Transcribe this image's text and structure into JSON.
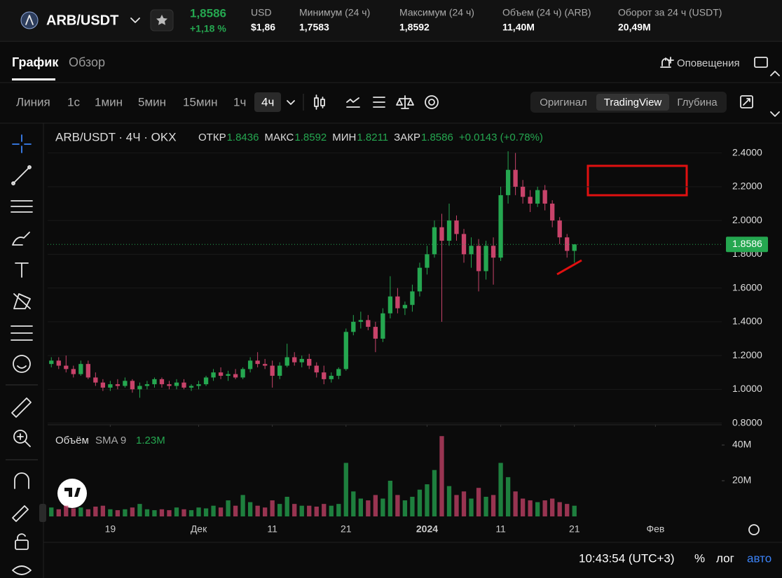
{
  "header": {
    "pair": "ARB/USDT",
    "price": "1,8586",
    "change": "+1,18 %",
    "stats": [
      {
        "label": "USD",
        "value": "$1,86"
      },
      {
        "label": "Минимум (24 ч)",
        "value": "1,7583"
      },
      {
        "label": "Максимум (24 ч)",
        "value": "1,8592"
      },
      {
        "label": "Объем (24 ч) (ARB)",
        "value": "11,40M"
      },
      {
        "label": "Оборот за 24 ч (USDT)",
        "value": "20,49M"
      }
    ]
  },
  "tabs": [
    "График",
    "Обзор"
  ],
  "alerts": "Оповещения",
  "toolbar": {
    "intervals": [
      "Линия",
      "1с",
      "1мин",
      "5мин",
      "15мин",
      "1ч",
      "4ч"
    ],
    "views": [
      "Оригинал",
      "TradingView",
      "Глубина"
    ]
  },
  "chart_data": {
    "type": "candlestick",
    "title": "ARB/USDT · 4Ч · OKX",
    "legend": [
      {
        "label": "ОТКР",
        "value": "1.8436"
      },
      {
        "label": "МАКС",
        "value": "1.8592"
      },
      {
        "label": "МИН",
        "value": "1.8211"
      },
      {
        "label": "ЗАКР",
        "value": "1.8586"
      }
    ],
    "legend_change": "+0.0143 (+0.78%)",
    "up_color": "#25a750",
    "down_color": "#c8436a",
    "candles": [
      [
        1.15,
        1.19,
        1.13,
        1.17
      ],
      [
        1.17,
        1.19,
        1.12,
        1.14
      ],
      [
        1.14,
        1.2,
        1.1,
        1.12
      ],
      [
        1.12,
        1.14,
        1.07,
        1.09
      ],
      [
        1.09,
        1.17,
        1.08,
        1.15
      ],
      [
        1.15,
        1.17,
        1.06,
        1.07
      ],
      [
        1.07,
        1.1,
        1.02,
        1.04
      ],
      [
        1.04,
        1.06,
        0.99,
        1.01
      ],
      [
        1.01,
        1.05,
        0.99,
        1.03
      ],
      [
        1.03,
        1.06,
        1,
        1.02
      ],
      [
        1.02,
        1.07,
        1.01,
        1.05
      ],
      [
        1.05,
        1.06,
        0.98,
        1
      ],
      [
        1,
        1.04,
        0.95,
        1.02
      ],
      [
        1.02,
        1.05,
        1,
        1.03
      ],
      [
        1.03,
        1.07,
        1.01,
        1.06
      ],
      [
        1.06,
        1.07,
        1.01,
        1.03
      ],
      [
        1.03,
        1.05,
        1,
        1.02
      ],
      [
        1.02,
        1.06,
        1,
        1.04
      ],
      [
        1.04,
        1.06,
        1,
        1.01
      ],
      [
        1.01,
        1.03,
        0.99,
        1.02
      ],
      [
        1.02,
        1.05,
        1,
        1.03
      ],
      [
        1.03,
        1.08,
        1.02,
        1.07
      ],
      [
        1.07,
        1.12,
        1.05,
        1.1
      ],
      [
        1.1,
        1.13,
        1.06,
        1.08
      ],
      [
        1.08,
        1.11,
        1.05,
        1.09
      ],
      [
        1.09,
        1.12,
        1.06,
        1.07
      ],
      [
        1.07,
        1.13,
        1.06,
        1.12
      ],
      [
        1.12,
        1.19,
        1.1,
        1.17
      ],
      [
        1.17,
        1.22,
        1.13,
        1.15
      ],
      [
        1.15,
        1.18,
        1.12,
        1.14
      ],
      [
        1.14,
        1.17,
        1.01,
        1.08
      ],
      [
        1.08,
        1.16,
        1.06,
        1.14
      ],
      [
        1.14,
        1.27,
        1.13,
        1.19
      ],
      [
        1.19,
        1.22,
        1.14,
        1.16
      ],
      [
        1.16,
        1.2,
        1.13,
        1.18
      ],
      [
        1.18,
        1.21,
        1.12,
        1.14
      ],
      [
        1.14,
        1.16,
        1.07,
        1.1
      ],
      [
        1.1,
        1.14,
        1.03,
        1.06
      ],
      [
        1.06,
        1.1,
        1.04,
        1.08
      ],
      [
        1.08,
        1.13,
        1.06,
        1.12
      ],
      [
        1.12,
        1.36,
        1.11,
        1.34
      ],
      [
        1.34,
        1.44,
        1.32,
        1.4
      ],
      [
        1.4,
        1.46,
        1.36,
        1.41
      ],
      [
        1.41,
        1.44,
        1.35,
        1.37
      ],
      [
        1.37,
        1.4,
        1.22,
        1.3
      ],
      [
        1.3,
        1.48,
        1.28,
        1.45
      ],
      [
        1.45,
        1.67,
        1.42,
        1.55
      ],
      [
        1.55,
        1.6,
        1.45,
        1.48
      ],
      [
        1.48,
        1.52,
        1.44,
        1.5
      ],
      [
        1.5,
        1.62,
        1.46,
        1.58
      ],
      [
        1.58,
        1.75,
        1.55,
        1.72
      ],
      [
        1.72,
        1.85,
        1.68,
        1.8
      ],
      [
        1.8,
        2,
        1.78,
        1.96
      ],
      [
        1.96,
        2.04,
        1.4,
        1.88
      ],
      [
        1.88,
        2.1,
        1.85,
        2
      ],
      [
        2,
        2.03,
        1.88,
        1.92
      ],
      [
        1.92,
        1.95,
        1.75,
        1.8
      ],
      [
        1.8,
        1.9,
        1.72,
        1.85
      ],
      [
        1.85,
        1.89,
        1.58,
        1.7
      ],
      [
        1.7,
        1.88,
        1.65,
        1.85
      ],
      [
        1.85,
        1.9,
        1.62,
        1.78
      ],
      [
        1.78,
        2.2,
        1.76,
        2.15
      ],
      [
        2.15,
        2.41,
        2.1,
        2.3
      ],
      [
        2.3,
        2.4,
        2.15,
        2.2
      ],
      [
        2.2,
        2.24,
        2.1,
        2.14
      ],
      [
        2.14,
        2.18,
        2.05,
        2.1
      ],
      [
        2.1,
        2.2,
        2.08,
        2.18
      ],
      [
        2.18,
        2.21,
        2.06,
        2.1
      ],
      [
        2.1,
        2.12,
        1.96,
        2
      ],
      [
        2,
        2.02,
        1.86,
        1.9
      ],
      [
        1.9,
        1.92,
        1.78,
        1.82
      ],
      [
        1.82,
        1.8592,
        1.75,
        1.8586
      ]
    ],
    "xlim": [
      -0.5,
      91
    ],
    "xticks": [
      {
        "value": 8,
        "label": "19"
      },
      {
        "value": 20,
        "label": "Дек"
      },
      {
        "value": 30,
        "label": "11"
      },
      {
        "value": 40,
        "label": "21"
      },
      {
        "value": 51,
        "label": "2024"
      },
      {
        "value": 61,
        "label": "11"
      },
      {
        "value": 71,
        "label": "21"
      },
      {
        "value": 82,
        "label": "Фев"
      }
    ],
    "ylim": [
      0.79,
      2.56
    ],
    "yticks": [
      {
        "value": 2.4,
        "label": "2.4000"
      },
      {
        "value": 2.2,
        "label": "2.2000"
      },
      {
        "value": 2,
        "label": "2.0000"
      },
      {
        "value": 1.8,
        "label": "1.8000"
      },
      {
        "value": 1.6,
        "label": "1.6000"
      },
      {
        "value": 1.4,
        "label": "1.4000"
      },
      {
        "value": 1.2,
        "label": "1.2000"
      },
      {
        "value": 1,
        "label": "1.0000"
      },
      {
        "value": 0.8,
        "label": "0.8000"
      }
    ],
    "last_price": 1.8586,
    "volume_title": "Объём",
    "volume_indicator": "SMA 9",
    "volume_sma": "1.23M",
    "volume": [
      5000000,
      4000000,
      6000000,
      4500000,
      5000000,
      4000000,
      5500000,
      6000000,
      4000000,
      3500000,
      4000000,
      5000000,
      7000000,
      4000000,
      3500000,
      4000000,
      3500000,
      5000000,
      4000000,
      3500000,
      5000000,
      4500000,
      6000000,
      5000000,
      9000000,
      6000000,
      12000000,
      8000000,
      6000000,
      5000000,
      9000000,
      7000000,
      11000000,
      7000000,
      6000000,
      6000000,
      5500000,
      7000000,
      6000000,
      7000000,
      30000000,
      14000000,
      10000000,
      9000000,
      12000000,
      10000000,
      20000000,
      12000000,
      9000000,
      11000000,
      15000000,
      18000000,
      26000000,
      45000000,
      17000000,
      12000000,
      14000000,
      10000000,
      16000000,
      11000000,
      12000000,
      30000000,
      22000000,
      14000000,
      10000000,
      9000000,
      8000000,
      9000000,
      10000000,
      8000000,
      7000000,
      6000000
    ],
    "vlim": [
      0,
      49400000
    ],
    "vticks": [
      {
        "value": 40000000,
        "label": "40M"
      },
      {
        "value": 20000000,
        "label": "20M"
      }
    ]
  },
  "footer": {
    "time": "10:43:54 (UTC+3)",
    "percent": "%",
    "log": "лог",
    "auto": "авто"
  }
}
